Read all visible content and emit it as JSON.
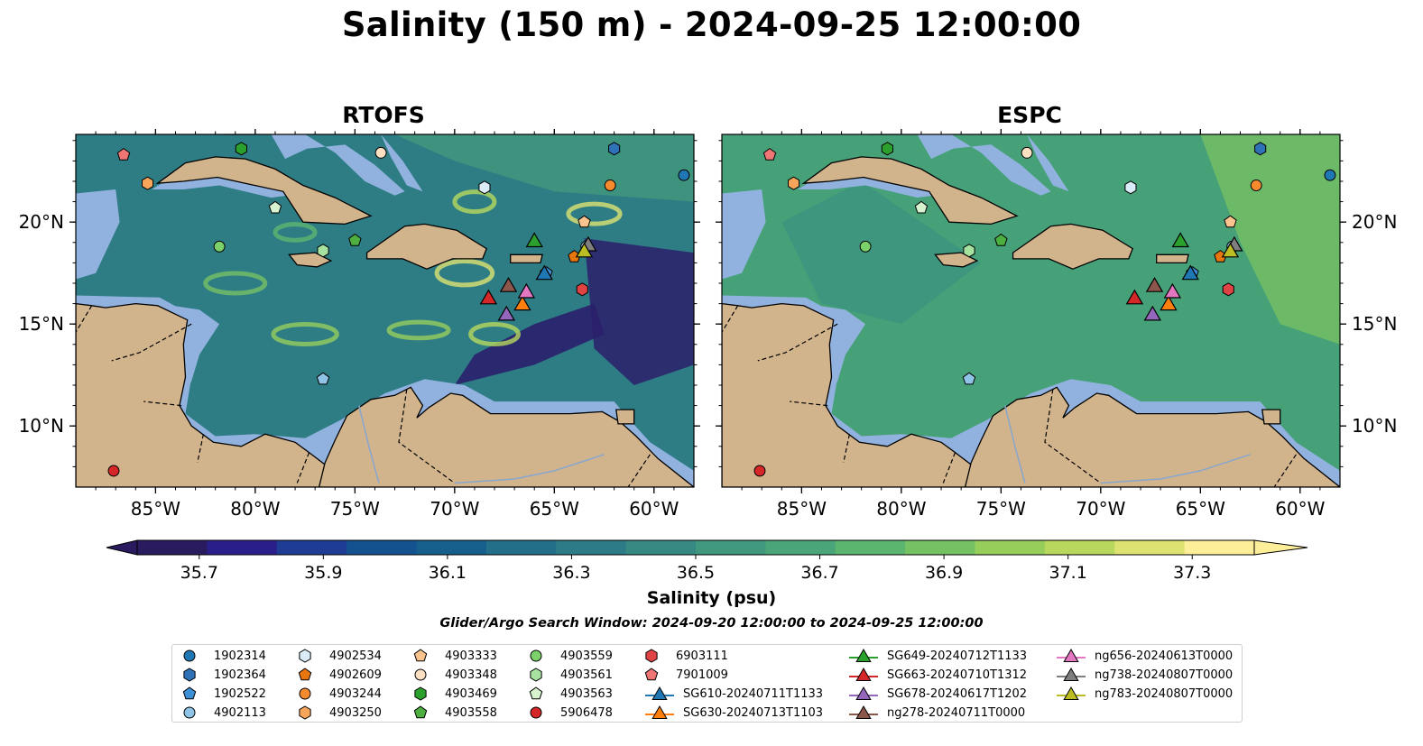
{
  "title": "Salinity (150 m) - 2024-09-25 12:00:00",
  "panels": [
    {
      "title": "RTOFS"
    },
    {
      "title": "ESPC"
    }
  ],
  "map": {
    "lon_range": [
      -89,
      -58
    ],
    "lat_range": [
      7,
      24.3
    ],
    "lon_ticks": [
      {
        "value": -85,
        "label": "85°W"
      },
      {
        "value": -80,
        "label": "80°W"
      },
      {
        "value": -75,
        "label": "75°W"
      },
      {
        "value": -70,
        "label": "70°W"
      },
      {
        "value": -65,
        "label": "65°W"
      },
      {
        "value": -60,
        "label": "60°W"
      }
    ],
    "lat_ticks": [
      {
        "value": 10,
        "label": "10°N"
      },
      {
        "value": 15,
        "label": "15°N"
      },
      {
        "value": 20,
        "label": "20°N"
      }
    ],
    "colors": {
      "land": "#d2b48c",
      "shelf": "#91b2df",
      "deep_left": "#2a1f6b",
      "ocean_rtofs": "#2e7d85",
      "ocean_espc": "#46a078",
      "coast": "#000000"
    }
  },
  "colorbar": {
    "label": "Salinity (psu)",
    "colormap": "haline",
    "range": [
      35.6,
      37.4
    ],
    "ticks": [
      "35.7",
      "35.9",
      "36.1",
      "36.3",
      "36.5",
      "36.7",
      "36.9",
      "37.1",
      "37.3"
    ],
    "colors": [
      "#2a1a5e",
      "#2a1f8a",
      "#1f3c95",
      "#13518f",
      "#165f8c",
      "#236e89",
      "#2d7b87",
      "#378984",
      "#40987f",
      "#4aa678",
      "#5cb56e",
      "#76c164",
      "#96cd5b",
      "#b7d85c",
      "#dde271",
      "#fdee99"
    ]
  },
  "search_window": "Glider/Argo Search Window: 2024-09-20 12:00:00 to 2024-09-25 12:00:00",
  "chart_data": {
    "type": "scatter",
    "description_fields": [
      "lon",
      "lat"
    ],
    "argo_floats": [
      {
        "id": "1902314",
        "marker": "circle",
        "color": "#1f77b4",
        "lon": -58.5,
        "lat": 22.3
      },
      {
        "id": "1902364",
        "marker": "hexagon",
        "color": "#2f72b8",
        "lon": -62.0,
        "lat": 23.6
      },
      {
        "id": "1902522",
        "marker": "pentagon",
        "color": "#3d8fd6",
        "lon": -65.4,
        "lat": 17.5
      },
      {
        "id": "4902113",
        "marker": "circle",
        "color": "#8fc4e6",
        "lon": -63.4,
        "lat": 18.8
      },
      {
        "id": "4902534",
        "marker": "hexagon",
        "color": "#d9ecf8",
        "lon": -68.5,
        "lat": 21.7
      },
      {
        "id": "4902609",
        "marker": "pentagon",
        "color": "#e8760e",
        "lon": -64.0,
        "lat": 18.3
      },
      {
        "id": "4903244",
        "marker": "circle",
        "color": "#f58b2e",
        "lon": -62.2,
        "lat": 21.8
      },
      {
        "id": "4903250",
        "marker": "hexagon",
        "color": "#f7a55b",
        "lon": -85.4,
        "lat": 21.9
      },
      {
        "id": "4903333",
        "marker": "pentagon",
        "color": "#fbc48f",
        "lon": -63.5,
        "lat": 20.0
      },
      {
        "id": "4903348",
        "marker": "circle",
        "color": "#fde0c2",
        "lon": -73.7,
        "lat": 23.4
      },
      {
        "id": "4903469",
        "marker": "hexagon",
        "color": "#2ca02c",
        "lon": -80.7,
        "lat": 23.6
      },
      {
        "id": "4903558",
        "marker": "pentagon",
        "color": "#4caf3f",
        "lon": -75.0,
        "lat": 19.1
      },
      {
        "id": "4903559",
        "marker": "circle",
        "color": "#7cd16a",
        "lon": -81.8,
        "lat": 18.8
      },
      {
        "id": "4903561",
        "marker": "hexagon",
        "color": "#a7e2a1",
        "lon": -76.6,
        "lat": 18.6
      },
      {
        "id": "4903563",
        "marker": "pentagon",
        "color": "#d6f2cf",
        "lon": -79.0,
        "lat": 20.7
      },
      {
        "id": "5906478",
        "marker": "circle",
        "color": "#d62728",
        "lon": -87.1,
        "lat": 7.8
      },
      {
        "id": "6903111",
        "marker": "hexagon",
        "color": "#e04343",
        "lon": -63.6,
        "lat": 16.7
      },
      {
        "id": "7901009",
        "marker": "pentagon",
        "color": "#f07575",
        "lon": -86.6,
        "lat": 23.3
      },
      {
        "id": "4903333b",
        "marker": "pentagon",
        "color": "#8fc4e6",
        "lon": -76.6,
        "lat": 12.3
      }
    ],
    "gliders": [
      {
        "id": "SG610-20240711T1133",
        "color": "#1f77b4",
        "lon": -65.5,
        "lat": 17.5
      },
      {
        "id": "SG630-20240713T1103",
        "color": "#ff7f0e",
        "lon": -66.6,
        "lat": 16.0
      },
      {
        "id": "SG649-20240712T1133",
        "color": "#2ca02c",
        "lon": -66.0,
        "lat": 19.1
      },
      {
        "id": "SG663-20240710T1312",
        "color": "#d62728",
        "lon": -68.3,
        "lat": 16.3
      },
      {
        "id": "SG678-20240617T1202",
        "color": "#9467bd",
        "lon": -67.4,
        "lat": 15.5
      },
      {
        "id": "ng278-20240711T0000",
        "color": "#8c564b",
        "lon": -67.3,
        "lat": 16.9
      },
      {
        "id": "ng656-20240613T0000",
        "color": "#e377c2",
        "lon": -66.4,
        "lat": 16.6
      },
      {
        "id": "ng738-20240807T0000",
        "color": "#7f7f7f",
        "lon": -63.3,
        "lat": 18.9
      },
      {
        "id": "ng783-20240807T0000",
        "color": "#bcbd22",
        "lon": -63.5,
        "lat": 18.6
      }
    ]
  },
  "legend": {
    "columns": [
      [
        "1902314",
        "1902364",
        "1902522",
        "4902113"
      ],
      [
        "4902534",
        "4902609",
        "4903244",
        "4903250"
      ],
      [
        "4903333",
        "4903348",
        "4903469",
        "4903558"
      ],
      [
        "4903559",
        "4903561",
        "4903563",
        "5906478"
      ],
      [
        "6903111",
        "7901009",
        "SG610-20240711T1133",
        "SG630-20240713T1103"
      ],
      [
        "SG649-20240712T1133",
        "SG663-20240710T1312",
        "SG678-20240617T1202",
        "ng278-20240711T0000"
      ],
      [
        "ng656-20240613T0000",
        "ng738-20240807T0000",
        "ng783-20240807T0000"
      ]
    ]
  }
}
